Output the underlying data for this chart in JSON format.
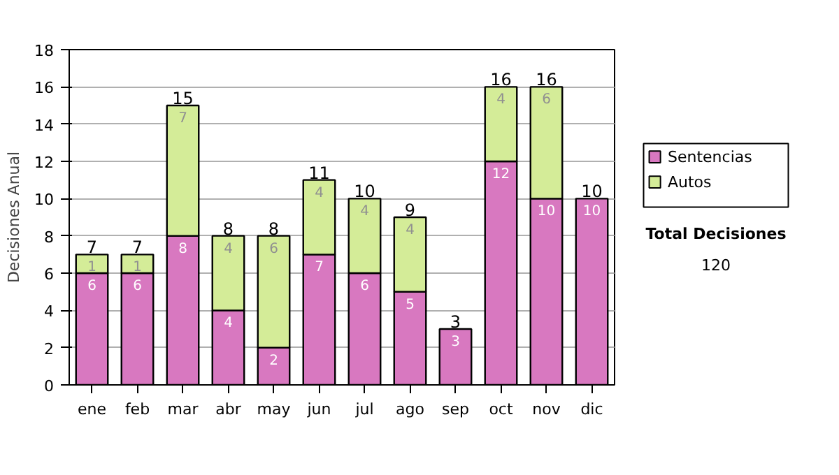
{
  "chart_data": {
    "type": "bar",
    "stacked": true,
    "ylabel": "Decisiones Anual",
    "categories": [
      "ene",
      "feb",
      "mar",
      "abr",
      "may",
      "jun",
      "jul",
      "ago",
      "sep",
      "oct",
      "nov",
      "dic"
    ],
    "series": [
      {
        "name": "Sentencias",
        "color": "#d878c0",
        "values": [
          6,
          6,
          8,
          4,
          2,
          7,
          6,
          5,
          3,
          12,
          10,
          10
        ],
        "value_labels": [
          "6",
          "6",
          "8",
          "4",
          "2",
          "7",
          "6",
          "5",
          "3",
          "12",
          "10",
          "10"
        ]
      },
      {
        "name": "Autos",
        "color": "#d4ec98",
        "values": [
          1,
          1,
          7,
          4,
          6,
          4,
          4,
          4,
          0,
          4,
          6,
          0
        ],
        "value_labels": [
          "1",
          "1",
          "7",
          "4",
          "6",
          "4",
          "4",
          "4",
          null,
          "4",
          "6",
          null
        ]
      }
    ],
    "totals": [
      "7",
      "7",
      "15",
      "8",
      "8",
      "11",
      "10",
      "9",
      "3",
      "16",
      "16",
      "10"
    ],
    "ylim": [
      0,
      18
    ],
    "yticks": [
      0,
      2,
      4,
      6,
      8,
      10,
      12,
      14,
      16,
      18
    ],
    "grid": "y",
    "legend": "right",
    "annotations": [
      "Total Decisiones",
      "120"
    ]
  }
}
